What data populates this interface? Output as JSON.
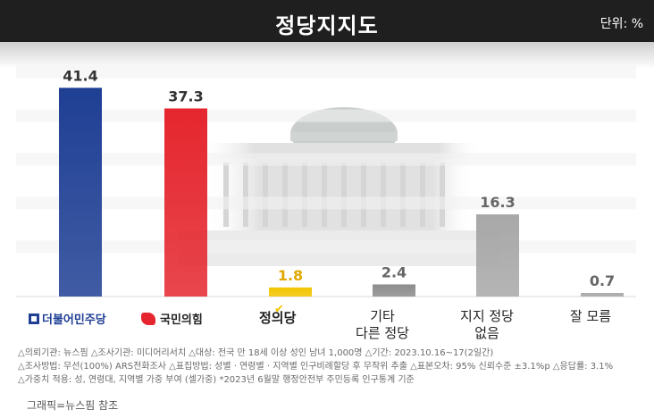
{
  "header": {
    "title": "정당지지도",
    "unit": "단위: %"
  },
  "chart_data": {
    "type": "bar",
    "title": "정당지지도",
    "unit": "%",
    "categories": [
      "더불어민주당",
      "국민의힘",
      "정의당",
      "기타 다른 정당",
      "지지 정당 없음",
      "잘 모름"
    ],
    "values": [
      41.4,
      37.3,
      1.8,
      2.4,
      16.3,
      0.7
    ],
    "value_labels": [
      "41.4",
      "37.3",
      "1.8",
      "2.4",
      "16.3",
      "0.7"
    ],
    "colors": [
      "#1f3f94",
      "#e5262e",
      "#f2c500",
      "#8c8c8c",
      "#a8a8a8",
      "#a8a8a8"
    ],
    "value_colors": [
      "#333333",
      "#333333",
      "#e0a800",
      "#666666",
      "#666666",
      "#666666"
    ],
    "ylim": [
      0,
      45
    ],
    "grid": true,
    "legend": "none"
  },
  "logos": {
    "democratic": "더불어민주당",
    "ppp": "국민의힘",
    "justice": "정의당"
  },
  "labels": {
    "others_line1": "기타",
    "others_line2": "다른 정당",
    "none_line1": "지지 정당",
    "none_line2": "없음",
    "dontknow": "잘 모름"
  },
  "notes": {
    "line1": "△의뢰기관: 뉴스핌 △조사기관: 미디어리서치 △대상: 전국 만 18세 이상 성인 남녀 1,000명 △기간: 2023.10.16~17(2일간)",
    "line2": "△조사방법: 무선(100%) ARS전화조사 △표집방법: 성별 · 연령별 · 지역별 인구비례할당 후 무작위 추출 △표본오차: 95% 신뢰수준 ±3.1%p △응답률: 3.1%",
    "line3": "△가중치 적용: 성, 연령대, 지역별 가중 부여 (셀가중) *2023년 6월말 행정안전부 주민등록 인구통계 기준"
  },
  "credit": "그래픽=뉴스핌 참조",
  "colors": {
    "header_bg": "#1f1f1f",
    "democratic": "#1f3f94",
    "ppp": "#e5262e",
    "justice": "#f2c500"
  }
}
